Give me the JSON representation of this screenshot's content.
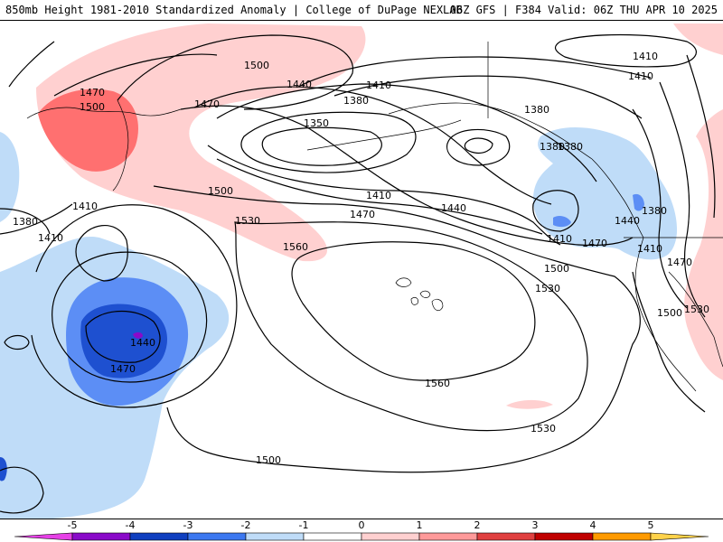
{
  "header": {
    "left_title": "850mb Height 1981-2010 Standardized Anomaly | College of DuPage NEXLAB",
    "right_title": "06Z GFS | F384 Valid: 06Z THU APR 10 2025"
  },
  "contour_labels": [
    {
      "text": "1500",
      "id": "c1"
    },
    {
      "text": "1470",
      "id": "c2"
    },
    {
      "text": "1500",
      "id": "c3"
    },
    {
      "text": "1470",
      "id": "c4"
    },
    {
      "text": "1440",
      "id": "c5"
    },
    {
      "text": "1410",
      "id": "c6"
    },
    {
      "text": "1380",
      "id": "c7"
    },
    {
      "text": "1350",
      "id": "c8"
    },
    {
      "text": "1380",
      "id": "c9"
    },
    {
      "text": "1380",
      "id": "c10"
    },
    {
      "text": "1410",
      "id": "c11"
    },
    {
      "text": "1410",
      "id": "c12"
    },
    {
      "text": "1500",
      "id": "c13"
    },
    {
      "text": "1530",
      "id": "c14"
    },
    {
      "text": "1560",
      "id": "c15"
    },
    {
      "text": "1410",
      "id": "c16"
    },
    {
      "text": "1470",
      "id": "c17"
    },
    {
      "text": "1440",
      "id": "c18"
    },
    {
      "text": "1410",
      "id": "c19"
    },
    {
      "text": "1470",
      "id": "c20"
    },
    {
      "text": "1500",
      "id": "c21"
    },
    {
      "text": "1530",
      "id": "c22"
    },
    {
      "text": "1380",
      "id": "c23"
    },
    {
      "text": "1410",
      "id": "c24"
    },
    {
      "text": "1410",
      "id": "c25"
    },
    {
      "text": "1380",
      "id": "c26"
    },
    {
      "text": "1440",
      "id": "c27"
    },
    {
      "text": "1470",
      "id": "c28"
    },
    {
      "text": "1560",
      "id": "c29"
    },
    {
      "text": "1530",
      "id": "c30"
    },
    {
      "text": "1500",
      "id": "c31"
    },
    {
      "text": "1500",
      "id": "c32"
    },
    {
      "text": "1530",
      "id": "c33"
    },
    {
      "text": "1440",
      "id": "c34"
    },
    {
      "text": "1410",
      "id": "c35"
    },
    {
      "text": "1470",
      "id": "c36"
    },
    {
      "text": "1380",
      "id": "c37"
    }
  ],
  "colorbar": {
    "labels": [
      "-5",
      "-4",
      "-3",
      "-2",
      "-1",
      "0",
      "1",
      "2",
      "3",
      "4",
      "5"
    ],
    "colors": [
      "#e640e6",
      "#8a0ac9",
      "#1040c0",
      "#3c78f0",
      "#bfdcf8",
      "#ffffff",
      "#ffd0d0",
      "#ff9a9a",
      "#e04040",
      "#c00000",
      "#ff9a00",
      "#ffd24a"
    ]
  },
  "colors": {
    "neg1": "#bfdcf8",
    "neg2": "#5c8ef5",
    "neg3": "#1e50d0",
    "neg4": "#8a0ac9",
    "pos1": "#ffd0d0",
    "pos2": "#ff7070",
    "contour": "#000000",
    "coast": "#000000"
  }
}
